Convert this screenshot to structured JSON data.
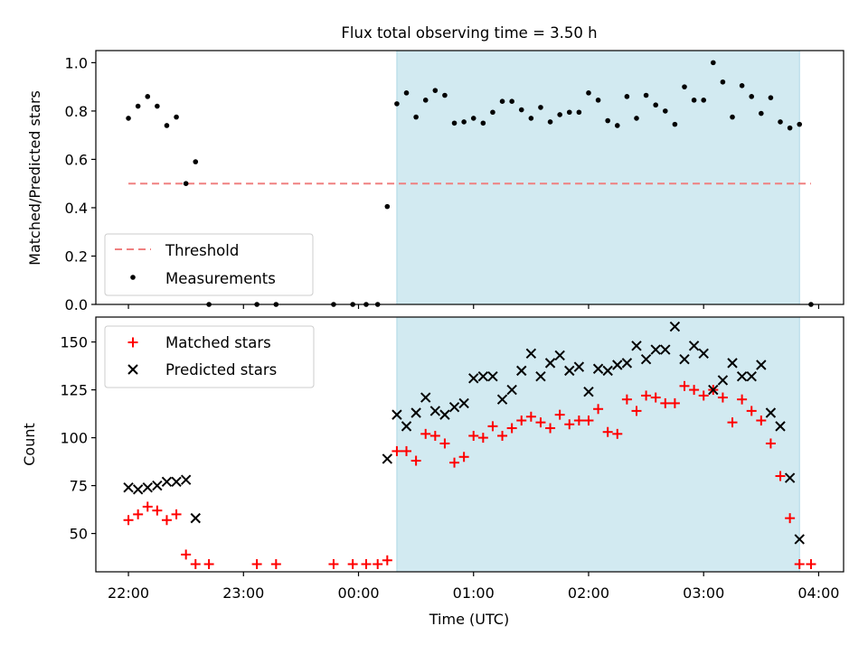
{
  "title": "Flux total observing time = 3.50 h",
  "x_axis": {
    "label": "Time (UTC)",
    "ticks": [
      {
        "label": "22:00",
        "hours": 0
      },
      {
        "label": "23:00",
        "hours": 1
      },
      {
        "label": "00:00",
        "hours": 2
      },
      {
        "label": "01:00",
        "hours": 3
      },
      {
        "label": "02:00",
        "hours": 4
      },
      {
        "label": "03:00",
        "hours": 5
      },
      {
        "label": "04:00",
        "hours": 6
      }
    ]
  },
  "colors": {
    "shade": "#add8e6",
    "threshold": "#f08080",
    "matched": "#ff0000",
    "predicted": "#000000",
    "measurement": "#000000"
  },
  "chart_data": [
    {
      "type": "scatter",
      "panel": "top",
      "title": "Flux total observing time = 3.50 h",
      "xlabel": "",
      "ylabel": "Matched/Predicted stars",
      "xlim": [
        "21:43",
        "04:13"
      ],
      "ylim": [
        0,
        1.05
      ],
      "yticks": [
        "0.0",
        "0.2",
        "0.4",
        "0.6",
        "0.8",
        "1.0"
      ],
      "shaded_region": [
        "00:20",
        "03:50"
      ],
      "threshold": {
        "name": "Threshold",
        "value": 0.5,
        "x_range": [
          "22:00",
          "03:56"
        ]
      },
      "legend": {
        "placement": "lower-left",
        "entries": [
          "Threshold",
          "Measurements"
        ]
      },
      "series": [
        {
          "name": "Measurements",
          "marker": "dot",
          "points": [
            [
              "22:00",
              0.77
            ],
            [
              "22:05",
              0.82
            ],
            [
              "22:10",
              0.86
            ],
            [
              "22:15",
              0.82
            ],
            [
              "22:20",
              0.74
            ],
            [
              "22:25",
              0.775
            ],
            [
              "22:30",
              0.5
            ],
            [
              "22:35",
              0.59
            ],
            [
              "22:42",
              0.0
            ],
            [
              "23:07",
              0.0
            ],
            [
              "23:17",
              0.0
            ],
            [
              "23:47",
              0.0
            ],
            [
              "23:57",
              0.0
            ],
            [
              "00:04",
              0.0
            ],
            [
              "00:10",
              0.0
            ],
            [
              "00:15",
              0.405
            ],
            [
              "00:20",
              0.83
            ],
            [
              "00:25",
              0.875
            ],
            [
              "00:30",
              0.775
            ],
            [
              "00:35",
              0.845
            ],
            [
              "00:40",
              0.885
            ],
            [
              "00:45",
              0.865
            ],
            [
              "00:50",
              0.75
            ],
            [
              "00:55",
              0.755
            ],
            [
              "01:00",
              0.77
            ],
            [
              "01:05",
              0.75
            ],
            [
              "01:10",
              0.795
            ],
            [
              "01:15",
              0.84
            ],
            [
              "01:20",
              0.84
            ],
            [
              "01:25",
              0.805
            ],
            [
              "01:30",
              0.77
            ],
            [
              "01:35",
              0.815
            ],
            [
              "01:40",
              0.755
            ],
            [
              "01:45",
              0.785
            ],
            [
              "01:50",
              0.795
            ],
            [
              "01:55",
              0.795
            ],
            [
              "02:00",
              0.875
            ],
            [
              "02:05",
              0.845
            ],
            [
              "02:10",
              0.76
            ],
            [
              "02:15",
              0.74
            ],
            [
              "02:20",
              0.86
            ],
            [
              "02:25",
              0.77
            ],
            [
              "02:30",
              0.865
            ],
            [
              "02:35",
              0.825
            ],
            [
              "02:40",
              0.8
            ],
            [
              "02:45",
              0.745
            ],
            [
              "02:50",
              0.9
            ],
            [
              "02:55",
              0.845
            ],
            [
              "03:00",
              0.845
            ],
            [
              "03:05",
              1.0
            ],
            [
              "03:10",
              0.92
            ],
            [
              "03:15",
              0.775
            ],
            [
              "03:20",
              0.905
            ],
            [
              "03:25",
              0.86
            ],
            [
              "03:30",
              0.79
            ],
            [
              "03:35",
              0.855
            ],
            [
              "03:40",
              0.755
            ],
            [
              "03:45",
              0.73
            ],
            [
              "03:50",
              0.745
            ],
            [
              "03:56",
              0.0
            ]
          ]
        }
      ]
    },
    {
      "type": "scatter",
      "panel": "bottom",
      "xlabel": "Time (UTC)",
      "ylabel": "Count",
      "xlim": [
        "21:43",
        "04:13"
      ],
      "ylim": [
        30,
        163
      ],
      "yticks": [
        "50",
        "75",
        "100",
        "125",
        "150"
      ],
      "shaded_region": [
        "00:20",
        "03:50"
      ],
      "legend": {
        "placement": "upper-left",
        "entries": [
          "Matched stars",
          "Predicted stars"
        ]
      },
      "series": [
        {
          "name": "Matched stars",
          "marker": "plus",
          "points": [
            [
              "22:00",
              57
            ],
            [
              "22:05",
              60
            ],
            [
              "22:10",
              64
            ],
            [
              "22:15",
              62
            ],
            [
              "22:20",
              57
            ],
            [
              "22:25",
              60
            ],
            [
              "22:30",
              39
            ],
            [
              "22:35",
              34
            ],
            [
              "22:42",
              34
            ],
            [
              "23:07",
              34
            ],
            [
              "23:17",
              34
            ],
            [
              "23:47",
              34
            ],
            [
              "23:57",
              34
            ],
            [
              "00:04",
              34
            ],
            [
              "00:10",
              34
            ],
            [
              "00:15",
              36
            ],
            [
              "00:20",
              93
            ],
            [
              "00:25",
              93
            ],
            [
              "00:30",
              88
            ],
            [
              "00:35",
              102
            ],
            [
              "00:40",
              101
            ],
            [
              "00:45",
              97
            ],
            [
              "00:50",
              87
            ],
            [
              "00:55",
              90
            ],
            [
              "01:00",
              101
            ],
            [
              "01:05",
              100
            ],
            [
              "01:10",
              106
            ],
            [
              "01:15",
              101
            ],
            [
              "01:20",
              105
            ],
            [
              "01:25",
              109
            ],
            [
              "01:30",
              111
            ],
            [
              "01:35",
              108
            ],
            [
              "01:40",
              105
            ],
            [
              "01:45",
              112
            ],
            [
              "01:50",
              107
            ],
            [
              "01:55",
              109
            ],
            [
              "02:00",
              109
            ],
            [
              "02:05",
              115
            ],
            [
              "02:10",
              103
            ],
            [
              "02:15",
              102
            ],
            [
              "02:20",
              120
            ],
            [
              "02:25",
              114
            ],
            [
              "02:30",
              122
            ],
            [
              "02:35",
              121
            ],
            [
              "02:40",
              118
            ],
            [
              "02:45",
              118
            ],
            [
              "02:50",
              127
            ],
            [
              "02:55",
              125
            ],
            [
              "03:00",
              122
            ],
            [
              "03:05",
              125
            ],
            [
              "03:10",
              121
            ],
            [
              "03:15",
              108
            ],
            [
              "03:20",
              120
            ],
            [
              "03:25",
              114
            ],
            [
              "03:30",
              109
            ],
            [
              "03:35",
              97
            ],
            [
              "03:40",
              80
            ],
            [
              "03:45",
              58
            ],
            [
              "03:50",
              34
            ],
            [
              "03:56",
              34
            ]
          ]
        },
        {
          "name": "Predicted stars",
          "marker": "x",
          "points": [
            [
              "22:00",
              74
            ],
            [
              "22:05",
              73
            ],
            [
              "22:10",
              74
            ],
            [
              "22:15",
              75
            ],
            [
              "22:20",
              77
            ],
            [
              "22:25",
              77
            ],
            [
              "22:30",
              78
            ],
            [
              "22:35",
              58
            ],
            [
              "00:15",
              89
            ],
            [
              "00:20",
              112
            ],
            [
              "00:25",
              106
            ],
            [
              "00:30",
              113
            ],
            [
              "00:35",
              121
            ],
            [
              "00:40",
              114
            ],
            [
              "00:45",
              112
            ],
            [
              "00:50",
              116
            ],
            [
              "00:55",
              118
            ],
            [
              "01:00",
              131
            ],
            [
              "01:05",
              132
            ],
            [
              "01:10",
              132
            ],
            [
              "01:15",
              120
            ],
            [
              "01:20",
              125
            ],
            [
              "01:25",
              135
            ],
            [
              "01:30",
              144
            ],
            [
              "01:35",
              132
            ],
            [
              "01:40",
              139
            ],
            [
              "01:45",
              143
            ],
            [
              "01:50",
              135
            ],
            [
              "01:55",
              137
            ],
            [
              "02:00",
              124
            ],
            [
              "02:05",
              136
            ],
            [
              "02:10",
              135
            ],
            [
              "02:15",
              138
            ],
            [
              "02:20",
              139
            ],
            [
              "02:25",
              148
            ],
            [
              "02:30",
              141
            ],
            [
              "02:35",
              146
            ],
            [
              "02:40",
              146
            ],
            [
              "02:45",
              158
            ],
            [
              "02:50",
              141
            ],
            [
              "02:55",
              148
            ],
            [
              "03:00",
              144
            ],
            [
              "03:05",
              125
            ],
            [
              "03:10",
              130
            ],
            [
              "03:15",
              139
            ],
            [
              "03:20",
              132
            ],
            [
              "03:25",
              132
            ],
            [
              "03:30",
              138
            ],
            [
              "03:35",
              113
            ],
            [
              "03:40",
              106
            ],
            [
              "03:45",
              79
            ],
            [
              "03:50",
              47
            ]
          ]
        }
      ]
    }
  ]
}
